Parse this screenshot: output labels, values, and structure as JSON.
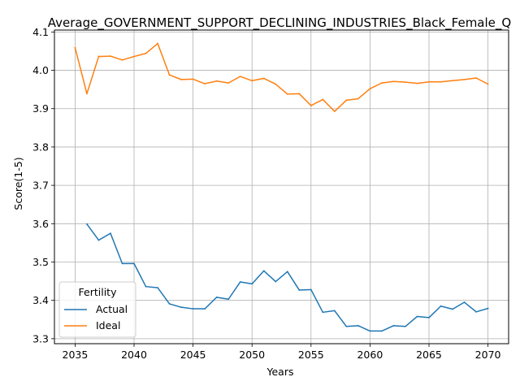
{
  "chart_data": {
    "type": "line",
    "title": "Average_GOVERNMENT_SUPPORT_DECLINING_INDUSTRIES_Black_Female_Q",
    "xlabel": "Years",
    "ylabel": "Score(1-5)",
    "xlim": [
      2033.25,
      2071.75
    ],
    "ylim": [
      3.287,
      4.105
    ],
    "xticks": [
      2035,
      2040,
      2045,
      2050,
      2055,
      2060,
      2065,
      2070
    ],
    "yticks": [
      3.3,
      3.4,
      3.5,
      3.6,
      3.7,
      3.8,
      3.9,
      4.0,
      4.1
    ],
    "grid": true,
    "legend": {
      "title": "Fertility",
      "position": "lower-left"
    },
    "series": [
      {
        "name": "Actual",
        "color": "#1f77b4",
        "x": [
          2036,
          2037,
          2038,
          2039,
          2040,
          2041,
          2042,
          2043,
          2044,
          2045,
          2046,
          2047,
          2048,
          2049,
          2050,
          2051,
          2052,
          2053,
          2054,
          2055,
          2056,
          2057,
          2058,
          2059,
          2060,
          2061,
          2062,
          2063,
          2064,
          2065,
          2066,
          2067,
          2068,
          2069,
          2070
        ],
        "values": [
          3.599,
          3.557,
          3.575,
          3.496,
          3.496,
          3.436,
          3.433,
          3.391,
          3.382,
          3.378,
          3.378,
          3.408,
          3.403,
          3.448,
          3.443,
          3.477,
          3.449,
          3.475,
          3.427,
          3.428,
          3.369,
          3.373,
          3.332,
          3.334,
          3.32,
          3.32,
          3.334,
          3.332,
          3.358,
          3.355,
          3.385,
          3.377,
          3.395,
          3.37,
          3.379
        ]
      },
      {
        "name": "Ideal",
        "color": "#ff7f0e",
        "x": [
          2035,
          2036,
          2037,
          2038,
          2039,
          2040,
          2041,
          2042,
          2043,
          2044,
          2045,
          2046,
          2047,
          2048,
          2049,
          2050,
          2051,
          2052,
          2053,
          2054,
          2055,
          2056,
          2057,
          2058,
          2059,
          2060,
          2061,
          2062,
          2063,
          2064,
          2065,
          2066,
          2067,
          2068,
          2069,
          2070
        ],
        "values": [
          4.059,
          3.939,
          4.036,
          4.037,
          4.027,
          4.036,
          4.044,
          4.07,
          3.988,
          3.976,
          3.977,
          3.965,
          3.972,
          3.967,
          3.984,
          3.973,
          3.979,
          3.964,
          3.938,
          3.939,
          3.908,
          3.924,
          3.893,
          3.922,
          3.926,
          3.952,
          3.967,
          3.971,
          3.969,
          3.966,
          3.97,
          3.97,
          3.973,
          3.976,
          3.98,
          3.964
        ]
      }
    ]
  }
}
